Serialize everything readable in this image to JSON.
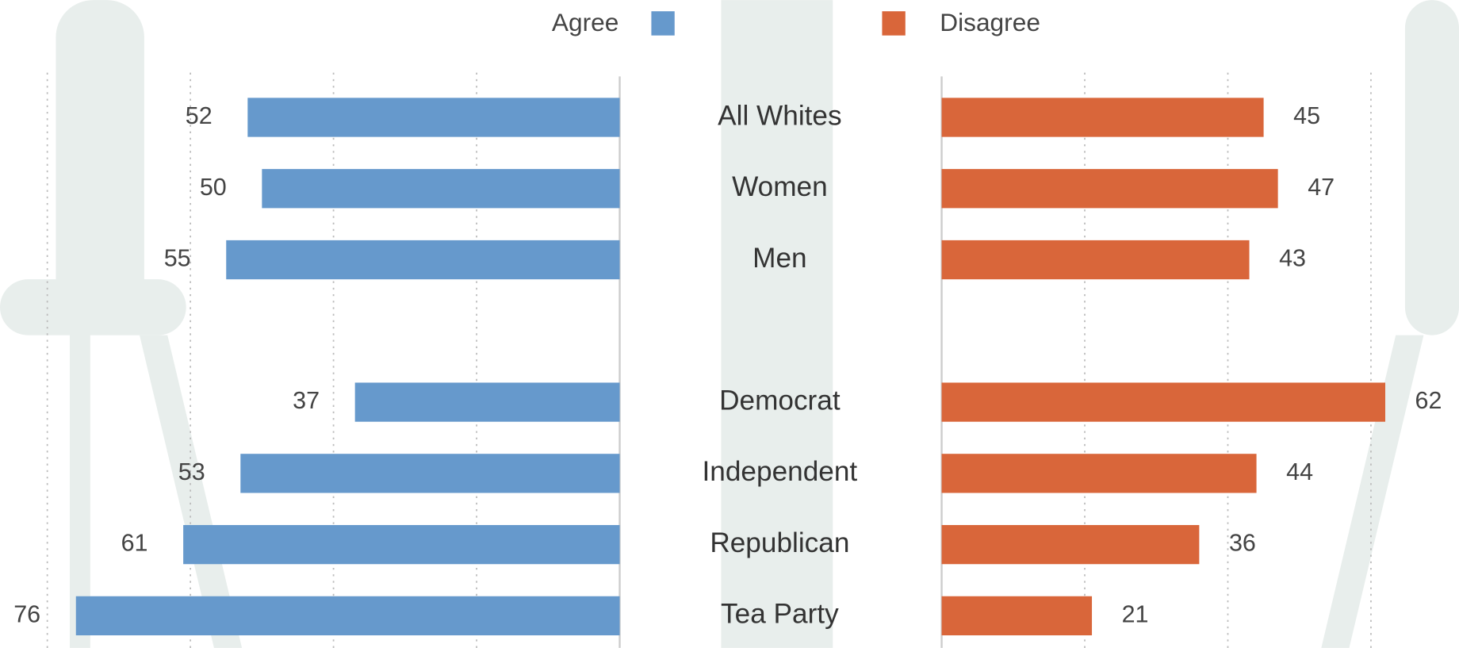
{
  "chart_data": {
    "type": "diverging-bar",
    "categories": [
      "All Whites",
      "Women",
      "Men",
      null,
      "Democrat",
      "Independent",
      "Republican",
      "Tea Party"
    ],
    "series": [
      {
        "name": "Agree",
        "color": "#6699cc",
        "values": [
          52,
          50,
          55,
          null,
          37,
          53,
          61,
          76
        ]
      },
      {
        "name": "Disagree",
        "color": "#d9663a",
        "values": [
          45,
          47,
          43,
          null,
          62,
          44,
          36,
          21
        ]
      }
    ],
    "xlim": [
      0,
      80.5
    ],
    "xticks": [
      20,
      40,
      60,
      80
    ],
    "grid": true
  }
}
